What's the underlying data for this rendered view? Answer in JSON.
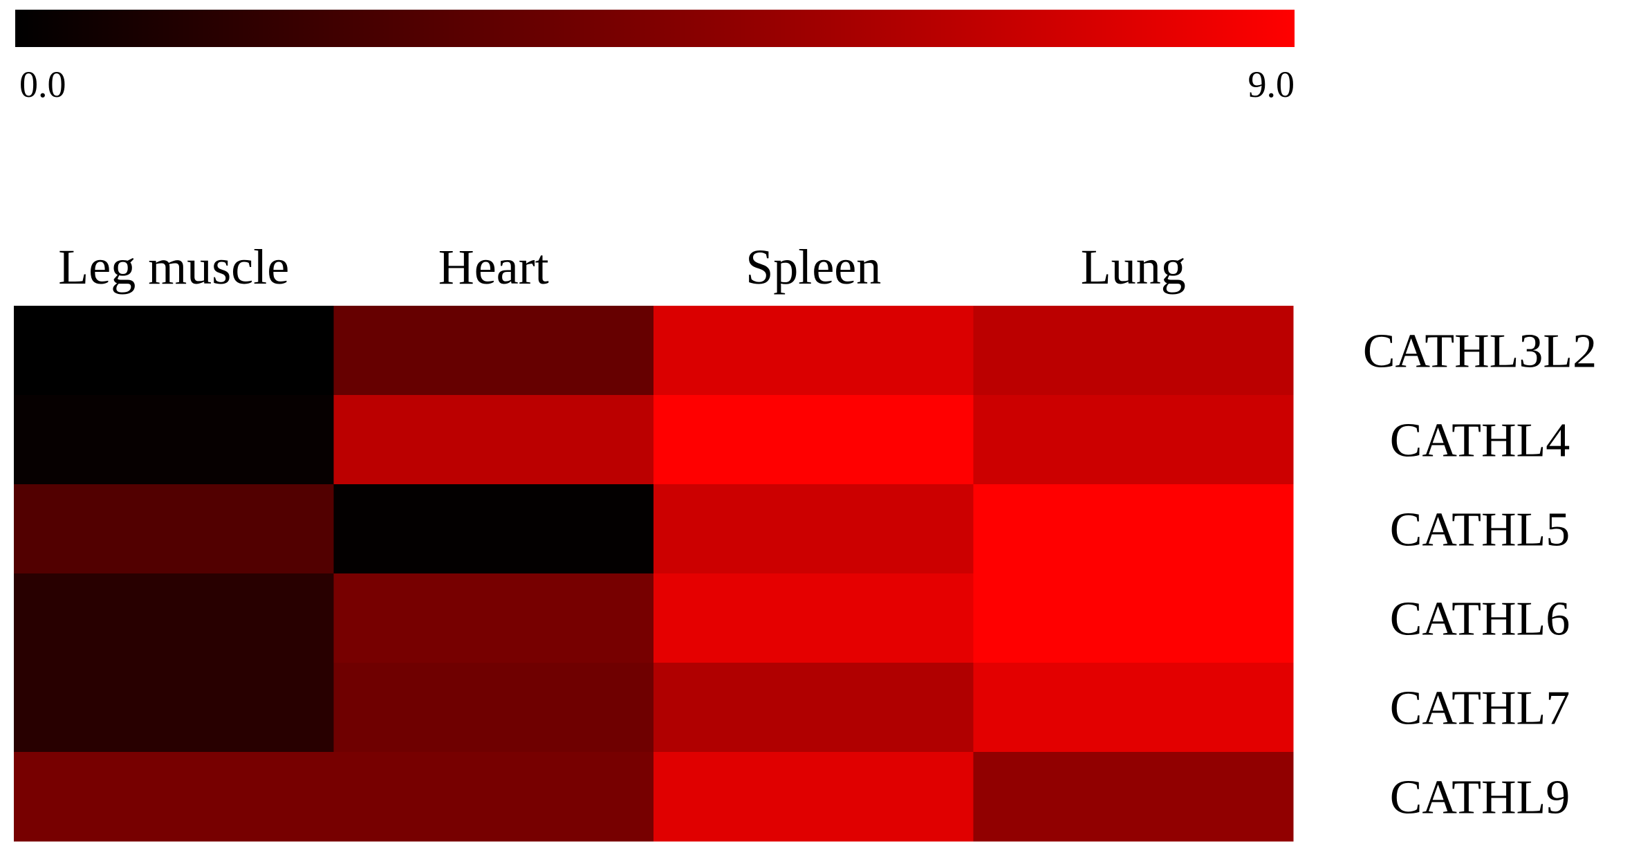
{
  "chart_data": {
    "type": "heatmap",
    "columns": [
      "Leg muscle",
      "Heart",
      "Spleen",
      "Lung"
    ],
    "rows": [
      "CATHL3L2",
      "CATHL4",
      "CATHL5",
      "CATHL6",
      "CATHL7",
      "CATHL9"
    ],
    "values": [
      [
        0.0,
        3.6,
        7.7,
        6.6
      ],
      [
        0.2,
        6.6,
        9.0,
        7.2
      ],
      [
        2.9,
        0.1,
        7.2,
        9.0
      ],
      [
        1.4,
        4.2,
        8.1,
        9.0
      ],
      [
        1.4,
        3.9,
        6.2,
        8.0
      ],
      [
        4.2,
        4.2,
        7.9,
        5.1
      ]
    ],
    "scale": {
      "min": 0.0,
      "max": 9.0,
      "min_label": "0.0",
      "max_label": "9.0",
      "low_color": "#000000",
      "high_color": "#ff0000"
    },
    "legend_placement": "top"
  }
}
